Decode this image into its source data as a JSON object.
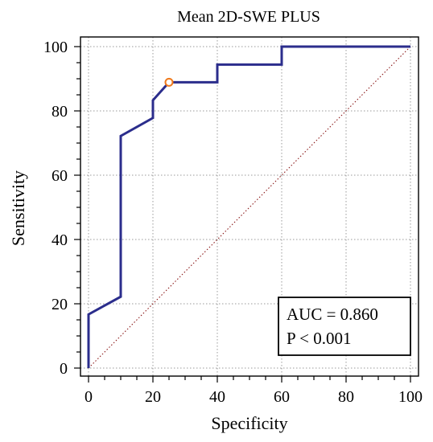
{
  "chart_data": {
    "type": "line",
    "title": "Mean 2D-SWE PLUS",
    "xlabel": "Specificity",
    "ylabel": "Sensitivity",
    "xlim": [
      0,
      100
    ],
    "ylim": [
      0,
      100
    ],
    "x_ticks": [
      "0",
      "20",
      "40",
      "60",
      "80",
      "100"
    ],
    "y_ticks": [
      "0",
      "20",
      "40",
      "60",
      "80",
      "100"
    ],
    "grid": true,
    "series": [
      {
        "color": "#2b2d8c",
        "x": [
          0,
          0,
          10,
          10,
          20,
          20,
          25,
          40,
          40,
          60,
          60,
          100
        ],
        "y": [
          0,
          16.7,
          22.2,
          72.2,
          77.8,
          83.3,
          88.9,
          88.9,
          94.4,
          94.4,
          100,
          100
        ]
      }
    ],
    "reference_line": {
      "x": [
        0,
        100
      ],
      "y": [
        0,
        100
      ],
      "color": "#8b1a1a"
    },
    "optimal_point": {
      "x": 25,
      "y": 88.9,
      "color": "#f07a1c"
    },
    "annotation": {
      "line1": "AUC = 0.860",
      "line2": "P < 0.001"
    }
  }
}
